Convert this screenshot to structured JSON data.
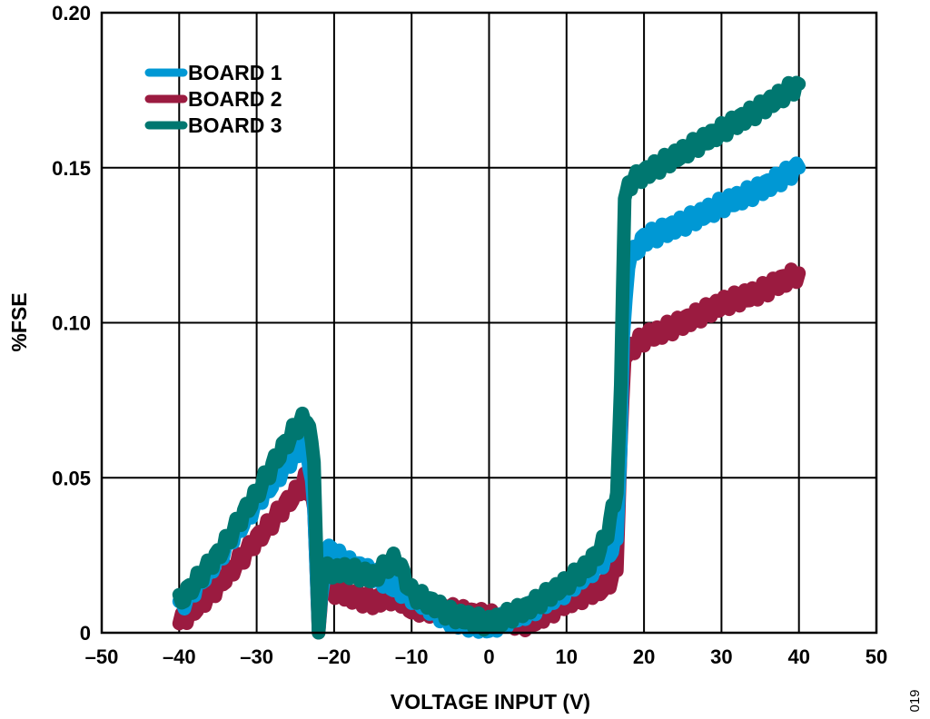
{
  "chart_data": {
    "type": "line",
    "title": "",
    "xlabel": "VOLTAGE INPUT (V)",
    "ylabel": "%FSE",
    "xlim": [
      -50,
      50
    ],
    "ylim": [
      0,
      0.2
    ],
    "xticks": [
      -50,
      -40,
      -30,
      -20,
      -10,
      0,
      10,
      20,
      30,
      40,
      50
    ],
    "xtick_labels": [
      "–50",
      "–40",
      "–30",
      "–20",
      "–10",
      "0",
      "10",
      "20",
      "30",
      "40",
      "50"
    ],
    "yticks": [
      0,
      0.05,
      0.1,
      0.15,
      0.2
    ],
    "ytick_labels": [
      "0",
      "0.05",
      "0.10",
      "0.15",
      "0.20"
    ],
    "grid": true,
    "legend_position": "top-left",
    "figure_id": "019",
    "series": [
      {
        "name": "BOARD 2",
        "color": "#9b1b40",
        "points": [
          [
            -40,
            0.003
          ],
          [
            -35,
            0.015
          ],
          [
            -30,
            0.03
          ],
          [
            -25,
            0.045
          ],
          [
            -23.5,
            0.05
          ],
          [
            -22.6,
            0.04
          ],
          [
            -22,
            0.0
          ],
          [
            -21.5,
            0.015
          ],
          [
            -18,
            0.012
          ],
          [
            -15,
            0.01
          ],
          [
            -12,
            0.012
          ],
          [
            -10,
            0.008
          ],
          [
            -5,
            0.007
          ],
          [
            0,
            0.005
          ],
          [
            5,
            0.003
          ],
          [
            10,
            0.01
          ],
          [
            15,
            0.015
          ],
          [
            16.5,
            0.02
          ],
          [
            17,
            0.06
          ],
          [
            17.5,
            0.09
          ],
          [
            20,
            0.095
          ],
          [
            25,
            0.1
          ],
          [
            30,
            0.106
          ],
          [
            35,
            0.11
          ],
          [
            40,
            0.116
          ]
        ]
      },
      {
        "name": "BOARD 1",
        "color": "#0098d4",
        "points": [
          [
            -40,
            0.008
          ],
          [
            -35,
            0.024
          ],
          [
            -30,
            0.042
          ],
          [
            -25,
            0.058
          ],
          [
            -23.5,
            0.06
          ],
          [
            -22.6,
            0.04
          ],
          [
            -22,
            0.0
          ],
          [
            -21,
            0.027
          ],
          [
            -18,
            0.022
          ],
          [
            -15,
            0.019
          ],
          [
            -10,
            0.012
          ],
          [
            -5,
            0.004
          ],
          [
            0,
            0.002
          ],
          [
            5,
            0.007
          ],
          [
            10,
            0.014
          ],
          [
            15,
            0.024
          ],
          [
            16.5,
            0.03
          ],
          [
            17,
            0.06
          ],
          [
            17.3,
            0.095
          ],
          [
            18,
            0.12
          ],
          [
            20,
            0.127
          ],
          [
            25,
            0.132
          ],
          [
            30,
            0.138
          ],
          [
            35,
            0.143
          ],
          [
            40,
            0.15
          ]
        ]
      },
      {
        "name": "BOARD 3",
        "color": "#007770",
        "points": [
          [
            -40,
            0.01
          ],
          [
            -35,
            0.025
          ],
          [
            -30,
            0.045
          ],
          [
            -27,
            0.058
          ],
          [
            -25,
            0.066
          ],
          [
            -23.5,
            0.07
          ],
          [
            -22.6,
            0.055
          ],
          [
            -22,
            0.0
          ],
          [
            -21.5,
            0.02
          ],
          [
            -18,
            0.02
          ],
          [
            -15,
            0.018
          ],
          [
            -12,
            0.024
          ],
          [
            -10,
            0.013
          ],
          [
            -5,
            0.006
          ],
          [
            0,
            0.003
          ],
          [
            5,
            0.008
          ],
          [
            10,
            0.016
          ],
          [
            13,
            0.022
          ],
          [
            15,
            0.03
          ],
          [
            16.5,
            0.045
          ],
          [
            17,
            0.08
          ],
          [
            17.5,
            0.14
          ],
          [
            18,
            0.145
          ],
          [
            20,
            0.148
          ],
          [
            25,
            0.155
          ],
          [
            30,
            0.162
          ],
          [
            35,
            0.169
          ],
          [
            40,
            0.177
          ]
        ]
      }
    ]
  }
}
